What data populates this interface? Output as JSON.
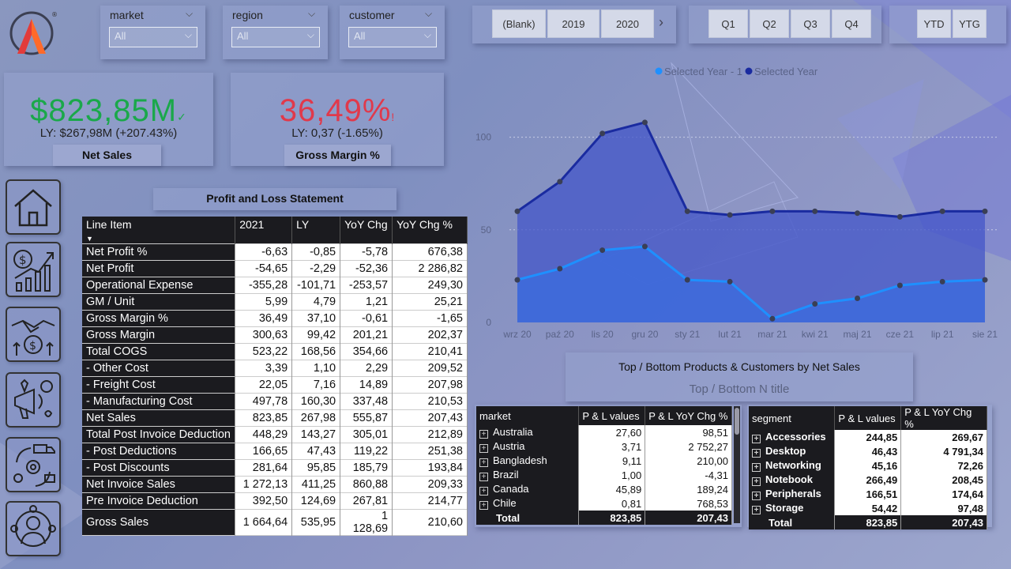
{
  "filters": [
    {
      "title": "market",
      "value": "All"
    },
    {
      "title": "region",
      "value": "All"
    },
    {
      "title": "customer",
      "value": "All"
    }
  ],
  "year_buttons": [
    "(Blank)",
    "2019",
    "2020"
  ],
  "quarter_buttons": [
    "Q1",
    "Q2",
    "Q3",
    "Q4"
  ],
  "period_buttons": [
    "YTD",
    "YTG"
  ],
  "kpis": {
    "net_sales": {
      "value": "$823,85M",
      "ly": "LY: $267,98M (+207.43%)",
      "label": "Net Sales",
      "color": "#1aa84a",
      "check": "✓"
    },
    "gross_margin": {
      "value": "36,49%",
      "ly": "LY: 0,37 (-1.65%)",
      "label": "Gross Margin %",
      "color": "#e0394b",
      "mark": "!"
    }
  },
  "pl": {
    "title": "Profit and Loss Statement",
    "headers": [
      "Line Item",
      "2021",
      "LY",
      "YoY Chg",
      "YoY Chg %"
    ],
    "rows": [
      [
        "Net Profit %",
        "-6,63",
        "-0,85",
        "-5,78",
        "676,38"
      ],
      [
        "Net Profit",
        "-54,65",
        "-2,29",
        "-52,36",
        "2 286,82"
      ],
      [
        "Operational Expense",
        "-355,28",
        "-101,71",
        "-253,57",
        "249,30"
      ],
      [
        "GM / Unit",
        "5,99",
        "4,79",
        "1,21",
        "25,21"
      ],
      [
        "Gross Margin %",
        "36,49",
        "37,10",
        "-0,61",
        "-1,65"
      ],
      [
        "Gross Margin",
        "300,63",
        "99,42",
        "201,21",
        "202,37"
      ],
      [
        "Total COGS",
        "523,22",
        "168,56",
        "354,66",
        "210,41"
      ],
      [
        "- Other Cost",
        "3,39",
        "1,10",
        "2,29",
        "209,52"
      ],
      [
        "- Freight Cost",
        "22,05",
        "7,16",
        "14,89",
        "207,98"
      ],
      [
        "- Manufacturing Cost",
        "497,78",
        "160,30",
        "337,48",
        "210,53"
      ],
      [
        "Net Sales",
        "823,85",
        "267,98",
        "555,87",
        "207,43"
      ],
      [
        "Total Post Invoice Deduction",
        "448,29",
        "143,27",
        "305,01",
        "212,89"
      ],
      [
        "- Post Deductions",
        "166,65",
        "47,43",
        "119,22",
        "251,38"
      ],
      [
        "- Post Discounts",
        "281,64",
        "95,85",
        "185,79",
        "193,84"
      ],
      [
        "Net Invoice Sales",
        "1 272,13",
        "411,25",
        "860,88",
        "209,33"
      ],
      [
        "Pre Invoice Deduction",
        "392,50",
        "124,69",
        "267,81",
        "214,77"
      ],
      [
        "Gross Sales",
        "1 664,64",
        "535,95",
        "1 128,69",
        "210,60"
      ]
    ]
  },
  "chart_data": {
    "type": "area",
    "legend": [
      "Selected Year - 1",
      "Selected Year"
    ],
    "legend_placement": "top-center",
    "categories": [
      "wrz 20",
      "paź 20",
      "lis 20",
      "gru 20",
      "sty 21",
      "lut 21",
      "mar 21",
      "kwi 21",
      "maj 21",
      "cze 21",
      "lip 21",
      "sie 21"
    ],
    "series": [
      {
        "name": "Selected Year - 1",
        "color": "#1e90ff",
        "values": [
          23,
          29,
          39,
          41,
          23,
          22,
          2,
          10,
          13,
          20,
          22,
          23
        ]
      },
      {
        "name": "Selected Year",
        "color": "#1a2ba0",
        "values": [
          60,
          76,
          102,
          108,
          60,
          58,
          60,
          60,
          59,
          57,
          60,
          60
        ]
      }
    ],
    "yticks": [
      0,
      50,
      100
    ],
    "ylim": [
      0,
      125
    ],
    "grid": true
  },
  "topbottom": {
    "title": "Top / Bottom Products & Customers by Net Sales",
    "subtitle": "Top / Bottom N title"
  },
  "market_table": {
    "headers": [
      "market",
      "P & L values",
      "P & L YoY Chg %"
    ],
    "rows": [
      [
        "Australia",
        "27,60",
        "98,51"
      ],
      [
        "Austria",
        "3,71",
        "2 752,27"
      ],
      [
        "Bangladesh",
        "9,11",
        "210,00"
      ],
      [
        "Brazil",
        "1,00",
        "-4,31"
      ],
      [
        "Canada",
        "45,89",
        "189,24"
      ],
      [
        "Chile",
        "0,81",
        "768,53"
      ]
    ],
    "total": [
      "Total",
      "823,85",
      "207,43"
    ]
  },
  "segment_table": {
    "headers": [
      "segment",
      "P & L values",
      "P & L YoY Chg %"
    ],
    "rows": [
      [
        "Accessories",
        "244,85",
        "269,67"
      ],
      [
        "Desktop",
        "46,43",
        "4 791,34"
      ],
      [
        "Networking",
        "45,16",
        "72,26"
      ],
      [
        "Notebook",
        "266,49",
        "208,45"
      ],
      [
        "Peripherals",
        "166,51",
        "174,64"
      ],
      [
        "Storage",
        "54,42",
        "97,48"
      ]
    ],
    "total": [
      "Total",
      "823,85",
      "207,43"
    ]
  },
  "nav_icons": [
    "home-icon",
    "finance-growth-icon",
    "deal-handshake-icon",
    "marketing-icon",
    "supply-chain-icon",
    "executive-icon"
  ]
}
